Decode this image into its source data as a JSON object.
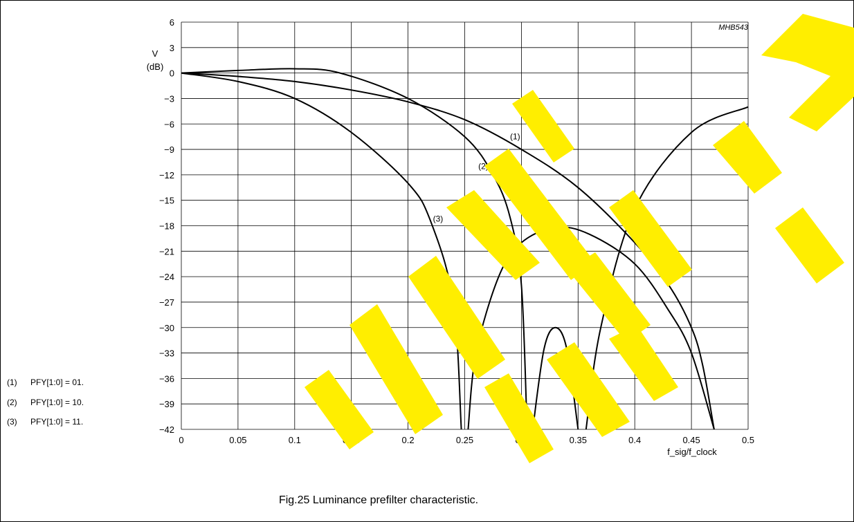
{
  "figure": {
    "code": "MHB543",
    "caption": "Fig.25  Luminance prefilter characteristic."
  },
  "legend": {
    "items": [
      {
        "marker": "(1)",
        "text": "PFY[1:0] = 01."
      },
      {
        "marker": "(2)",
        "text": "PFY[1:0] = 10."
      },
      {
        "marker": "(3)",
        "text": "PFY[1:0] = 11."
      }
    ]
  },
  "colors": {
    "watermark": "#ffee00",
    "ink": "#000000"
  },
  "chart_data": {
    "type": "line",
    "title": "",
    "xlabel": "f_sig/f_clock",
    "ylabel_line1": "V",
    "ylabel_line2": "(dB)",
    "xlim": [
      0,
      0.5
    ],
    "ylim": [
      -42,
      6
    ],
    "x_ticks": [
      0,
      0.05,
      0.1,
      0.15,
      0.2,
      0.25,
      0.3,
      0.35,
      0.4,
      0.45,
      0.5
    ],
    "x_tick_labels": [
      "0",
      "0.05",
      "0.1",
      "0.15",
      "0.2",
      "0.25",
      "0.3",
      "0.35",
      "0.4",
      "0.45",
      "0.5"
    ],
    "y_ticks": [
      6,
      3,
      0,
      -3,
      -6,
      -9,
      -12,
      -15,
      -18,
      -21,
      -24,
      -27,
      -30,
      -33,
      -36,
      -39,
      -42
    ],
    "y_tick_labels": [
      "6",
      "3",
      "0",
      "−3",
      "−6",
      "−9",
      "−12",
      "−15",
      "−18",
      "−21",
      "−24",
      "−27",
      "−30",
      "−33",
      "−36",
      "−39",
      "−42"
    ],
    "grid": true,
    "series": [
      {
        "name": "(1)",
        "segments": [
          [
            [
              0,
              0
            ],
            [
              0.05,
              -0.4
            ],
            [
              0.1,
              -1.0
            ],
            [
              0.15,
              -2.0
            ],
            [
              0.2,
              -3.4
            ],
            [
              0.25,
              -5.5
            ],
            [
              0.3,
              -9.0
            ],
            [
              0.35,
              -13.5
            ],
            [
              0.4,
              -20.0
            ],
            [
              0.43,
              -25.0
            ],
            [
              0.45,
              -30.0
            ],
            [
              0.46,
              -34.5
            ],
            [
              0.47,
              -42.0
            ]
          ]
        ]
      },
      {
        "name": "(2)",
        "segments": [
          [
            [
              0,
              0
            ],
            [
              0.05,
              0.3
            ],
            [
              0.1,
              0.5
            ],
            [
              0.14,
              0.0
            ],
            [
              0.2,
              -3.0
            ],
            [
              0.25,
              -7.5
            ],
            [
              0.275,
              -12.0
            ],
            [
              0.29,
              -17.0
            ],
            [
              0.3,
              -25.0
            ],
            [
              0.305,
              -42.0
            ]
          ],
          [
            [
              0.253,
              -42.0
            ],
            [
              0.26,
              -33.0
            ],
            [
              0.28,
              -24.0
            ],
            [
              0.3,
              -20.0
            ],
            [
              0.33,
              -18.2
            ],
            [
              0.36,
              -19.0
            ],
            [
              0.4,
              -22.5
            ],
            [
              0.43,
              -28.0
            ],
            [
              0.45,
              -33.0
            ],
            [
              0.47,
              -42.0
            ]
          ]
        ]
      },
      {
        "name": "(3)",
        "segments": [
          [
            [
              0,
              0
            ],
            [
              0.05,
              -1.0
            ],
            [
              0.1,
              -3.0
            ],
            [
              0.15,
              -7.0
            ],
            [
              0.2,
              -13.0
            ],
            [
              0.22,
              -17.5
            ],
            [
              0.24,
              -27.0
            ],
            [
              0.247,
              -42.0
            ]
          ],
          [
            [
              0.31,
              -42.0
            ],
            [
              0.32,
              -32.5
            ],
            [
              0.33,
              -30.0
            ],
            [
              0.34,
              -32.5
            ],
            [
              0.35,
              -42.0
            ]
          ],
          [
            [
              0.357,
              -42.0
            ],
            [
              0.37,
              -30.0
            ],
            [
              0.4,
              -16.0
            ],
            [
              0.45,
              -7.0
            ],
            [
              0.5,
              -4.0
            ]
          ]
        ]
      }
    ],
    "curve_labels": [
      {
        "text": "(1)",
        "x": 0.29,
        "y": -7.8
      },
      {
        "text": "(2)",
        "x": 0.262,
        "y": -11.3
      },
      {
        "text": "(3)",
        "x": 0.222,
        "y": -17.5
      }
    ]
  }
}
